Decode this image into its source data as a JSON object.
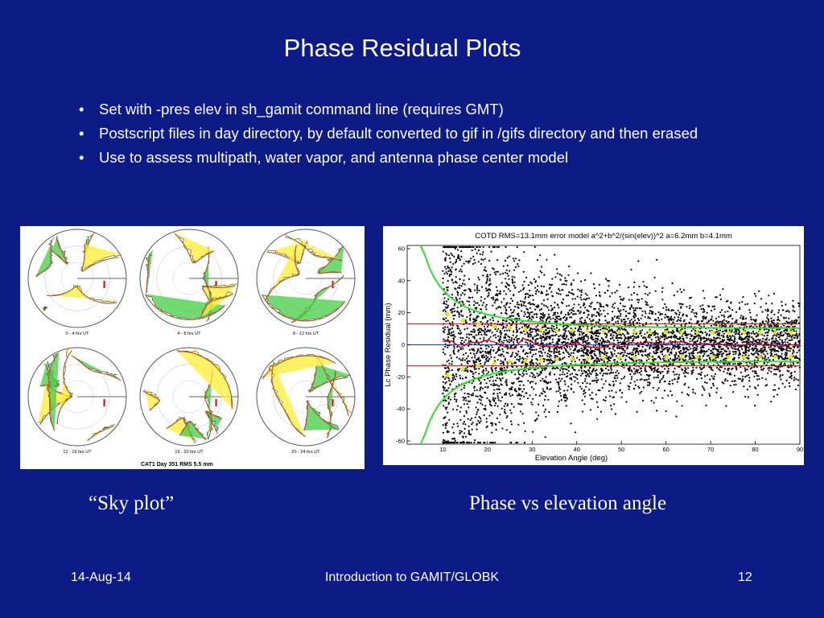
{
  "slide": {
    "title": "Phase Residual Plots",
    "bullets": [
      "Set with -pres elev in sh_gamit command line (requires GMT)",
      "Postscript files in day directory, by default converted to gif in /gifs directory and then erased",
      "Use to assess multipath, water vapor, and antenna phase center model"
    ],
    "caption_left": "“Sky plot”",
    "caption_right": "Phase vs elevation angle"
  },
  "sky_plot": {
    "panels": [
      {
        "label": "0 - 4 hrs UT"
      },
      {
        "label": "4 - 8 hrs UT"
      },
      {
        "label": "8 - 12 hrs UT"
      },
      {
        "label": "12 - 16 hrs UT"
      },
      {
        "label": "16 - 20 hrs UT"
      },
      {
        "label": "20 - 24 hrs UT"
      }
    ],
    "footer_label": "CAT1 Day 351 RMS 5.5 mm"
  },
  "chart_data": {
    "type": "scatter",
    "title": "COTD RMS=13.1mm error model a^2+b^2/(sin(elev))^2 a=6.2mm b=4.1mm",
    "xlabel": "Elevation Angle (deg)",
    "ylabel": "Lc Phase Residual (mm)",
    "xlim": [
      2,
      90
    ],
    "ylim": [
      -62,
      62
    ],
    "xticks": [
      10,
      20,
      30,
      40,
      50,
      60,
      70,
      80,
      90
    ],
    "yticks": [
      -60,
      -40,
      -20,
      0,
      20,
      40,
      60
    ],
    "rms_lines": [
      13.1,
      -13.1
    ],
    "error_model": {
      "a_mm": 6.2,
      "b_mm": 4.1
    },
    "colors": {
      "points": "#000000",
      "mean": "#e6e600",
      "model": "#33dd33",
      "rms": "#dd0000",
      "zero": "#2233cc",
      "median": "#cc0000"
    }
  },
  "footer": {
    "date": "14-Aug-14",
    "center": "Introduction to GAMIT/GLOBK",
    "page": "12"
  }
}
